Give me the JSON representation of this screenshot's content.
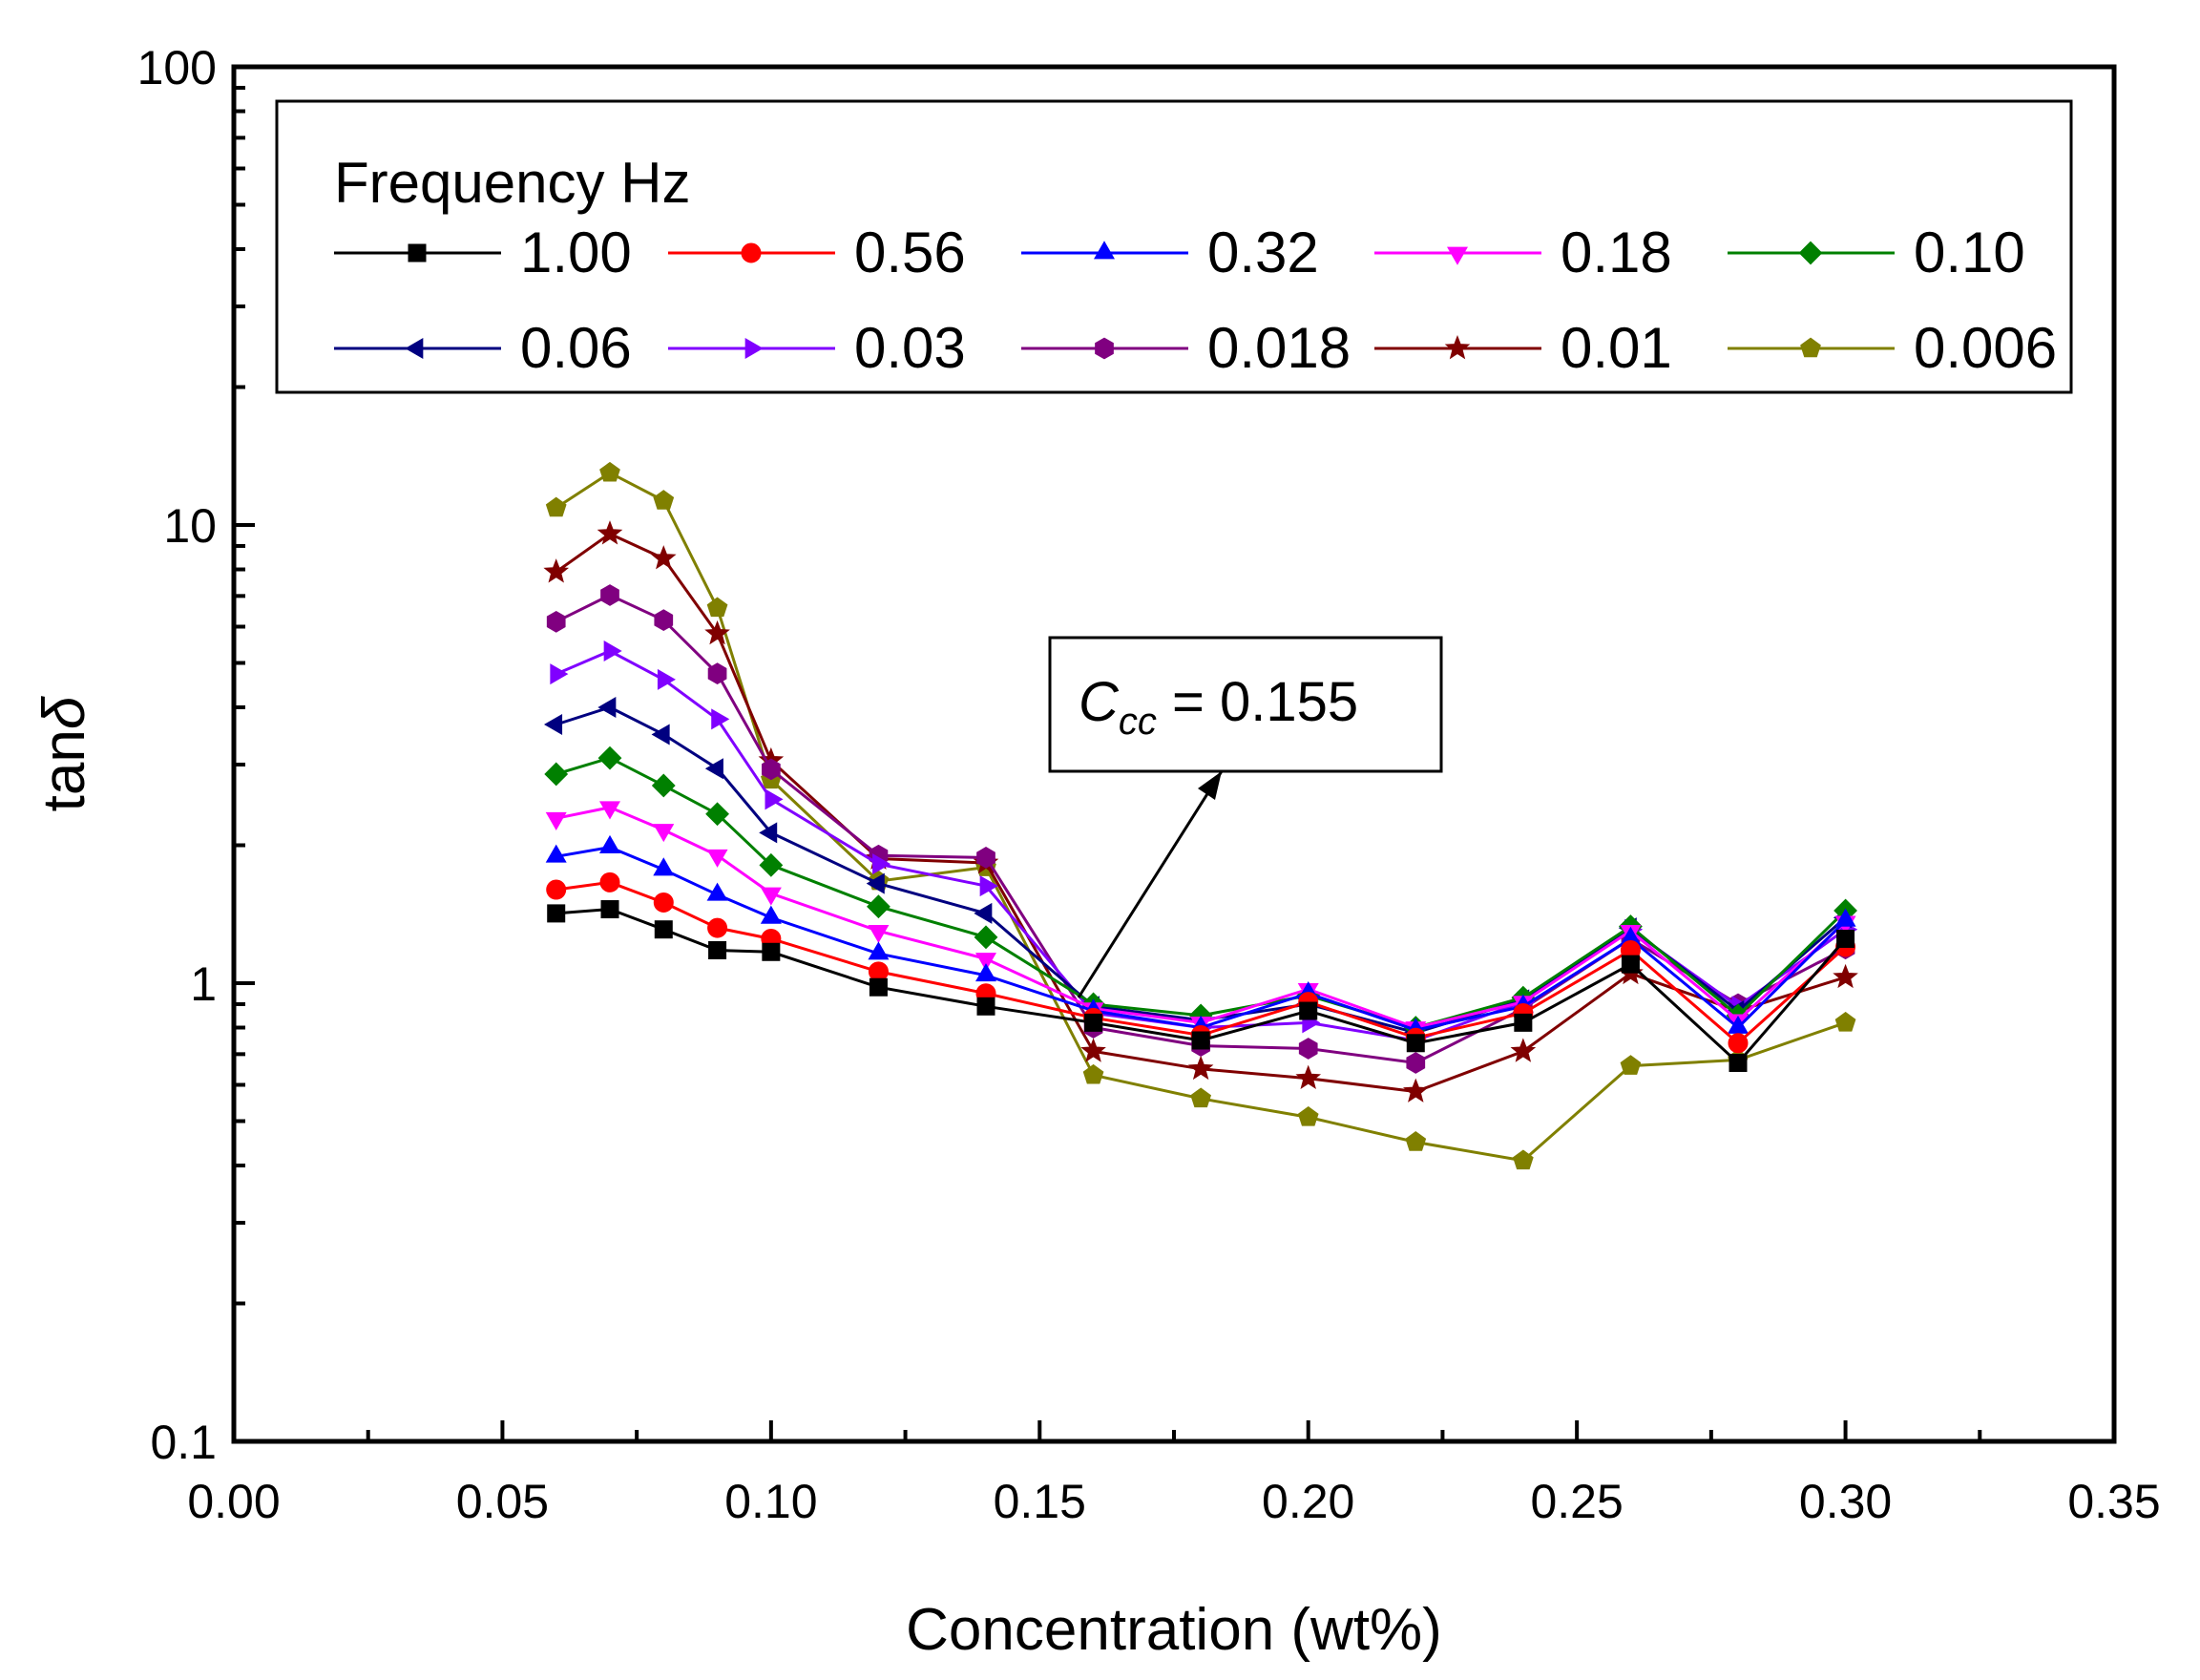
{
  "chart_data": {
    "type": "line",
    "xlabel": "Concentration (wt%)",
    "ylabel_main": "tan",
    "ylabel_symbol": "δ",
    "xlim": [
      0.0,
      0.35
    ],
    "ylim": [
      0.1,
      100
    ],
    "y_scale": "log",
    "x_ticks": [
      "0.00",
      "0.05",
      "0.10",
      "0.15",
      "0.20",
      "0.25",
      "0.30",
      "0.35"
    ],
    "y_ticks": [
      "0.1",
      "1",
      "10",
      "100"
    ],
    "grid": false,
    "legend": {
      "title": "Frequency Hz",
      "placement": "top"
    },
    "annotation": {
      "var": "C",
      "sub": "cc",
      "rest": " = 0.155",
      "arrow_to": [
        0.155,
        0.92
      ]
    },
    "x": [
      0.06,
      0.07,
      0.08,
      0.09,
      0.1,
      0.12,
      0.14,
      0.16,
      0.18,
      0.2,
      0.22,
      0.24,
      0.26,
      0.28,
      0.3
    ],
    "series": [
      {
        "name": "1.00",
        "color": "#000000",
        "marker": "square",
        "values": [
          1.42,
          1.45,
          1.31,
          1.18,
          1.17,
          0.98,
          0.89,
          0.82,
          0.75,
          0.87,
          0.74,
          0.82,
          1.1,
          0.67,
          1.25
        ]
      },
      {
        "name": "0.56",
        "color": "#ff0000",
        "marker": "circle",
        "values": [
          1.6,
          1.66,
          1.5,
          1.32,
          1.25,
          1.06,
          0.95,
          0.84,
          0.77,
          0.91,
          0.76,
          0.86,
          1.18,
          0.74,
          1.2
        ]
      },
      {
        "name": "0.32",
        "color": "#0000ff",
        "marker": "triangle-up",
        "values": [
          1.89,
          1.98,
          1.77,
          1.56,
          1.39,
          1.16,
          1.04,
          0.87,
          0.8,
          0.95,
          0.79,
          0.89,
          1.25,
          0.8,
          1.37
        ]
      },
      {
        "name": "0.18",
        "color": "#ff00ff",
        "marker": "triangle-down",
        "values": [
          2.29,
          2.42,
          2.16,
          1.9,
          1.57,
          1.3,
          1.13,
          0.88,
          0.82,
          0.97,
          0.8,
          0.91,
          1.3,
          0.83,
          1.36
        ]
      },
      {
        "name": "0.10",
        "color": "#008000",
        "marker": "diamond",
        "values": [
          2.86,
          3.1,
          2.7,
          2.34,
          1.81,
          1.47,
          1.26,
          0.9,
          0.85,
          0.94,
          0.8,
          0.93,
          1.33,
          0.85,
          1.44
        ]
      },
      {
        "name": "0.06",
        "color": "#000080",
        "marker": "triangle-left",
        "values": [
          3.67,
          4.0,
          3.49,
          2.94,
          2.13,
          1.65,
          1.42,
          0.89,
          0.83,
          0.9,
          0.78,
          0.92,
          1.32,
          0.87,
          1.39
        ]
      },
      {
        "name": "0.03",
        "color": "#8000ff",
        "marker": "triangle-right",
        "values": [
          4.73,
          5.31,
          4.6,
          3.77,
          2.52,
          1.82,
          1.63,
          0.86,
          0.8,
          0.82,
          0.75,
          0.91,
          1.31,
          0.89,
          1.31
        ]
      },
      {
        "name": "0.018",
        "color": "#800080",
        "marker": "hexagon",
        "values": [
          6.15,
          7.03,
          6.2,
          4.74,
          2.93,
          1.9,
          1.88,
          0.8,
          0.73,
          0.72,
          0.67,
          0.88,
          1.25,
          0.9,
          1.19
        ]
      },
      {
        "name": "0.01",
        "color": "#800000",
        "marker": "star",
        "values": [
          7.9,
          9.57,
          8.45,
          5.79,
          3.06,
          1.87,
          1.83,
          0.71,
          0.65,
          0.62,
          0.58,
          0.71,
          1.05,
          0.87,
          1.03
        ]
      },
      {
        "name": "0.006",
        "color": "#808000",
        "marker": "pentagon",
        "values": [
          10.9,
          13.0,
          11.3,
          6.59,
          2.78,
          1.67,
          1.79,
          0.63,
          0.56,
          0.51,
          0.45,
          0.41,
          0.66,
          0.68,
          0.82
        ]
      }
    ]
  }
}
